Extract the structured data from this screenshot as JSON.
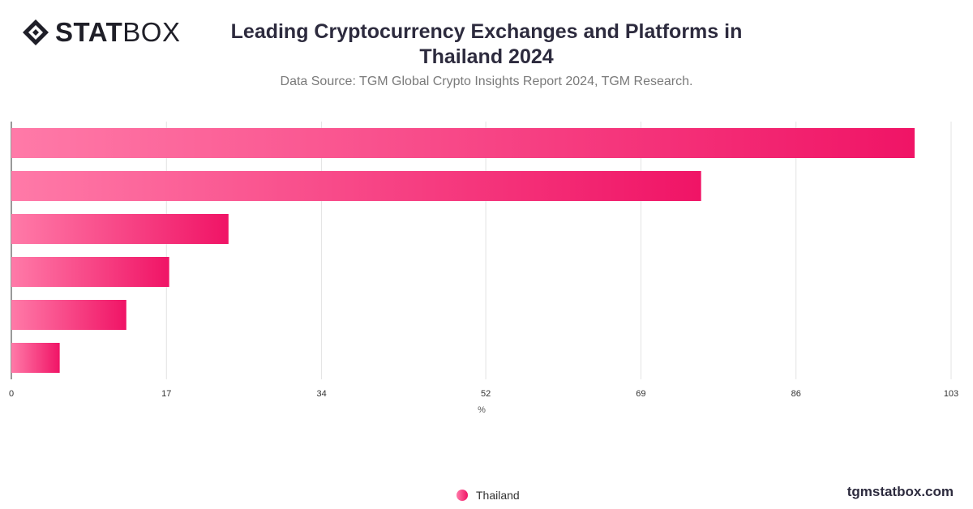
{
  "brand": {
    "logo_stat": "STAT",
    "logo_box": "BOX",
    "footer": "tgmstatbox.com"
  },
  "header": {
    "title": "Leading Cryptocurrency Exchanges and Platforms in Thailand 2024",
    "subtitle": "Data Source: TGM Global Crypto Insights Report 2024, TGM Research."
  },
  "chart_data": {
    "type": "bar",
    "orientation": "horizontal",
    "categories": [
      "",
      "",
      "",
      "",
      "",
      ""
    ],
    "series": [
      {
        "name": "Thailand",
        "values": [
          99,
          75.6,
          23.8,
          17.3,
          12.6,
          5.3
        ]
      }
    ],
    "xlabel": "%",
    "xlim": [
      0,
      103
    ],
    "xticks": [
      0,
      17,
      34,
      52,
      69,
      86,
      103
    ],
    "grid": true,
    "legend": "bottom-center",
    "colors": {
      "bar_start": "#ff7aa8",
      "bar_end": "#f01466",
      "grid": "#e3e3e3",
      "axis": "#555555"
    }
  }
}
